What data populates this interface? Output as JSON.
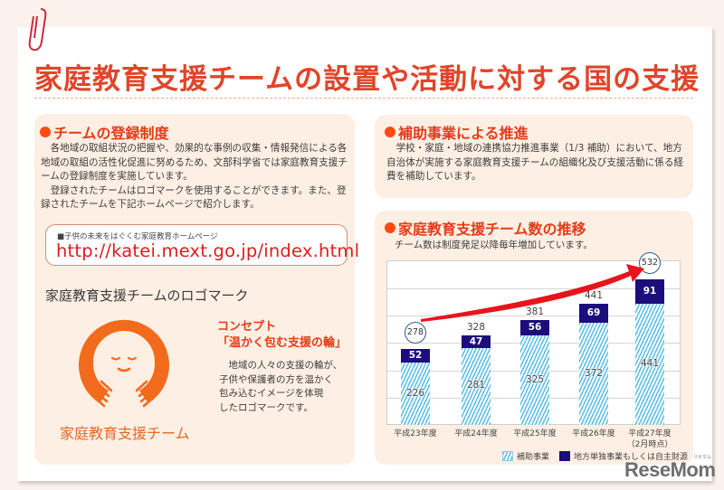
{
  "page": {
    "title": "家庭教育支援チームの設置や活動に対する国の支援"
  },
  "registration_panel": {
    "heading": "チームの登録制度",
    "paragraphs": [
      "各地域の取組状況の把握や、効果的な事例の収集・情報発信による各地域の取組の活性化促進に努めるため、文部科学省では家庭教育支援チームの登録制度を実施しています。",
      "登録されたチームはロゴマークを使用することができます。また、登録されたチームを下記ホームページで紹介します。"
    ],
    "link_caption": "■子供の未来をはぐくむ家庭教育ホームページ",
    "link_url": "http://katei.mext.go.jp/index.html",
    "logo_heading": "家庭教育支援チームのロゴマーク",
    "logo_caption": "家庭教育支援チーム",
    "concept_label": "コンセプト",
    "concept_title": "「温かく包む支援の輪」",
    "concept_lines": [
      "　地域の人々の支援の輪が、",
      "子供や保護者の方を温かく",
      "包み込むイメージを体現",
      "したロゴマークです。"
    ]
  },
  "subsidy_panel": {
    "heading": "補助事業による推進",
    "paragraph": "学校・家庭・地域の連携協力推進事業（1/3 補助）において、地方自治体が実施する家庭教育支援チームの組織化及び支援活動に係る経費を補助しています。"
  },
  "chart_panel": {
    "heading": "家庭教育支援チーム数の推移",
    "subtitle": "チーム数は制度発足以降毎年増加しています。",
    "colors": {
      "subsidy": "#5bbde6",
      "independent": "#1d0d7c",
      "arrow": "#e8141b",
      "circle": "#2c5b8f"
    }
  },
  "chart_data": {
    "type": "bar",
    "stacked": true,
    "title": "家庭教育支援チーム数の推移",
    "subtitle": "チーム数は制度発足以降毎年増加しています。",
    "categories": [
      "平成23年度",
      "平成24年度",
      "平成25年度",
      "平成26年度",
      "平成27年度"
    ],
    "category_notes": [
      "",
      "",
      "",
      "",
      "（2月時点）"
    ],
    "series": [
      {
        "name": "補助事業",
        "values": [
          226,
          281,
          325,
          372,
          441
        ],
        "style": "hatched light blue"
      },
      {
        "name": "地方単独事業もしくは自主財源",
        "values": [
          52,
          47,
          56,
          69,
          91
        ],
        "style": "solid navy"
      }
    ],
    "totals": [
      278,
      328,
      381,
      441,
      532
    ],
    "circled_totals": [
      0,
      4
    ],
    "annotations": [
      "red curved arrow from 278 (平成23年度) rising to 532 (平成27年度)"
    ],
    "xlabel": "",
    "ylabel": "",
    "ylim": [
      0,
      600
    ],
    "grid": true,
    "legend_position": "bottom-right",
    "legend": [
      "補助事業",
      "地方単独事業もしくは自主財源"
    ]
  },
  "watermark": {
    "text": "ReseMom",
    "ruby": "リセマム"
  }
}
